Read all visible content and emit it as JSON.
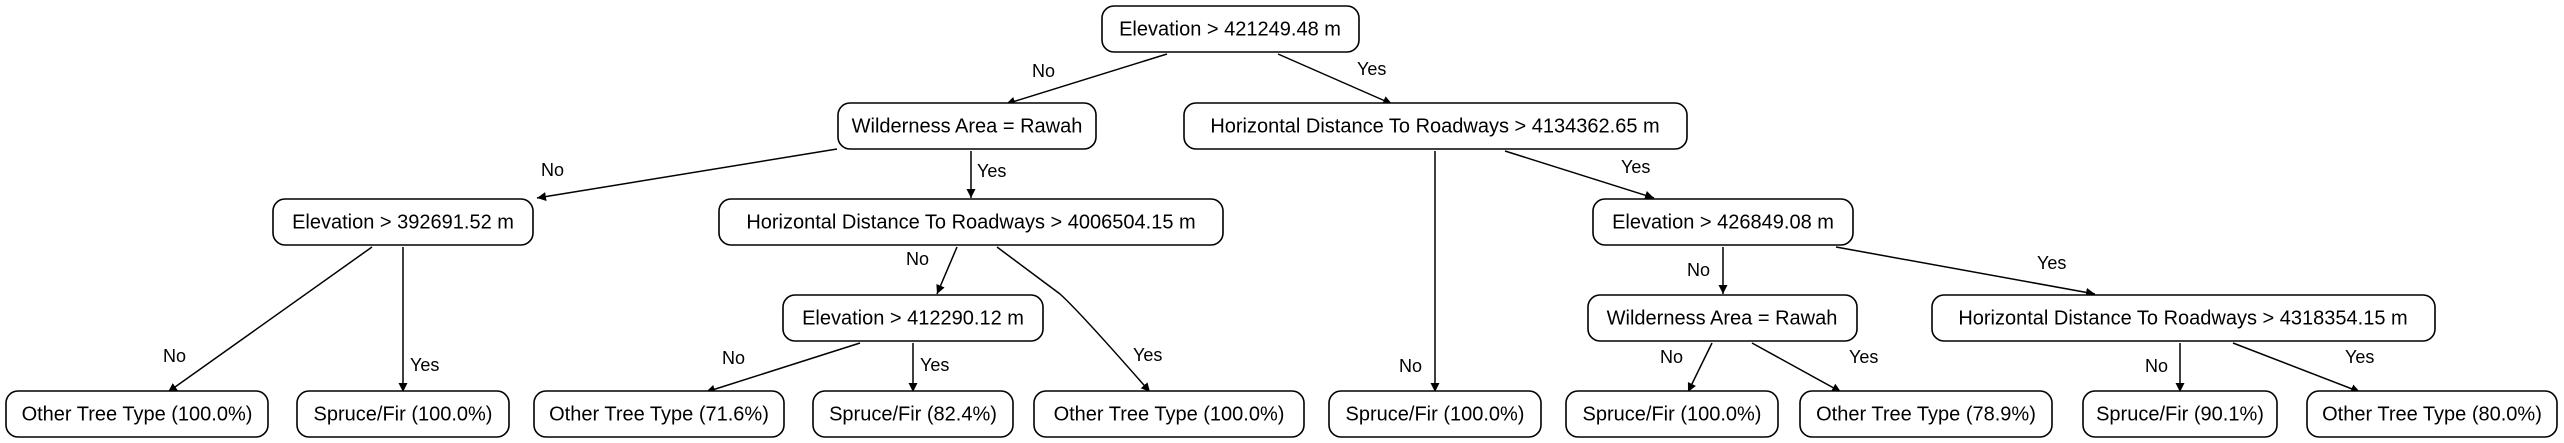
{
  "colors": {
    "line": "#000000",
    "node_fill": "#ffffff",
    "text": "#000000"
  },
  "branch_labels": {
    "no": "No",
    "yes": "Yes"
  },
  "nodes": {
    "root": "Elevation > 421249.48 m",
    "n_wild1": "Wilderness Area = Rawah",
    "n_hdr1": "Horizontal Distance To Roadways > 4134362.65 m",
    "n_elev2": "Elevation > 392691.52 m",
    "n_hdr2": "Horizontal Distance To Roadways > 4006504.15 m",
    "n_elev3": "Elevation > 426849.08 m",
    "n_elev4": "Elevation > 412290.12 m",
    "n_wild2": "Wilderness Area = Rawah",
    "n_hdr3": "Horizontal Distance To Roadways > 4318354.15 m",
    "leaf1": "Other Tree Type (100.0%)",
    "leaf2": "Spruce/Fir (100.0%)",
    "leaf3": "Other Tree Type (71.6%)",
    "leaf4": "Spruce/Fir (82.4%)",
    "leaf5": "Other Tree Type (100.0%)",
    "leaf6": "Spruce/Fir (100.0%)",
    "leaf7": "Spruce/Fir (100.0%)",
    "leaf8": "Other Tree Type (78.9%)",
    "leaf9": "Spruce/Fir (90.1%)",
    "leaf10": "Other Tree Type (80.0%)"
  }
}
